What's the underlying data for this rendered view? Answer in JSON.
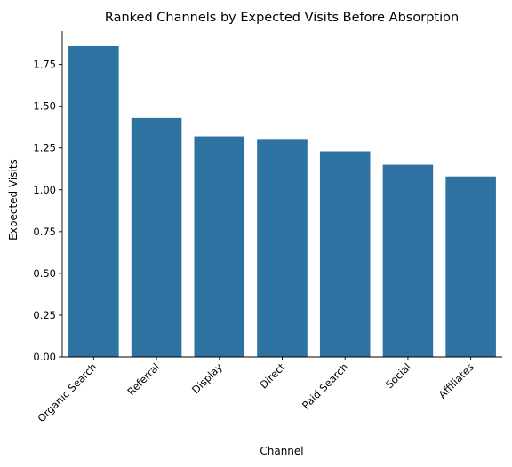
{
  "chart_data": {
    "type": "bar",
    "title": "Ranked Channels by Expected Visits Before Absorption",
    "xlabel": "Channel",
    "ylabel": "Expected Visits",
    "categories": [
      "Organic Search",
      "Referral",
      "Display",
      "Direct",
      "Paid Search",
      "Social",
      "Affiliates"
    ],
    "values": [
      1.86,
      1.43,
      1.32,
      1.3,
      1.23,
      1.15,
      1.08
    ],
    "ylim": [
      0,
      1.95
    ],
    "yticks": [
      0.0,
      0.25,
      0.5,
      0.75,
      1.0,
      1.25,
      1.5,
      1.75
    ],
    "ytick_labels": [
      "0.00",
      "0.25",
      "0.50",
      "0.75",
      "1.00",
      "1.25",
      "1.50",
      "1.75"
    ],
    "bar_color": "#2e72a1",
    "grid": false,
    "xtick_rotation": 45
  }
}
